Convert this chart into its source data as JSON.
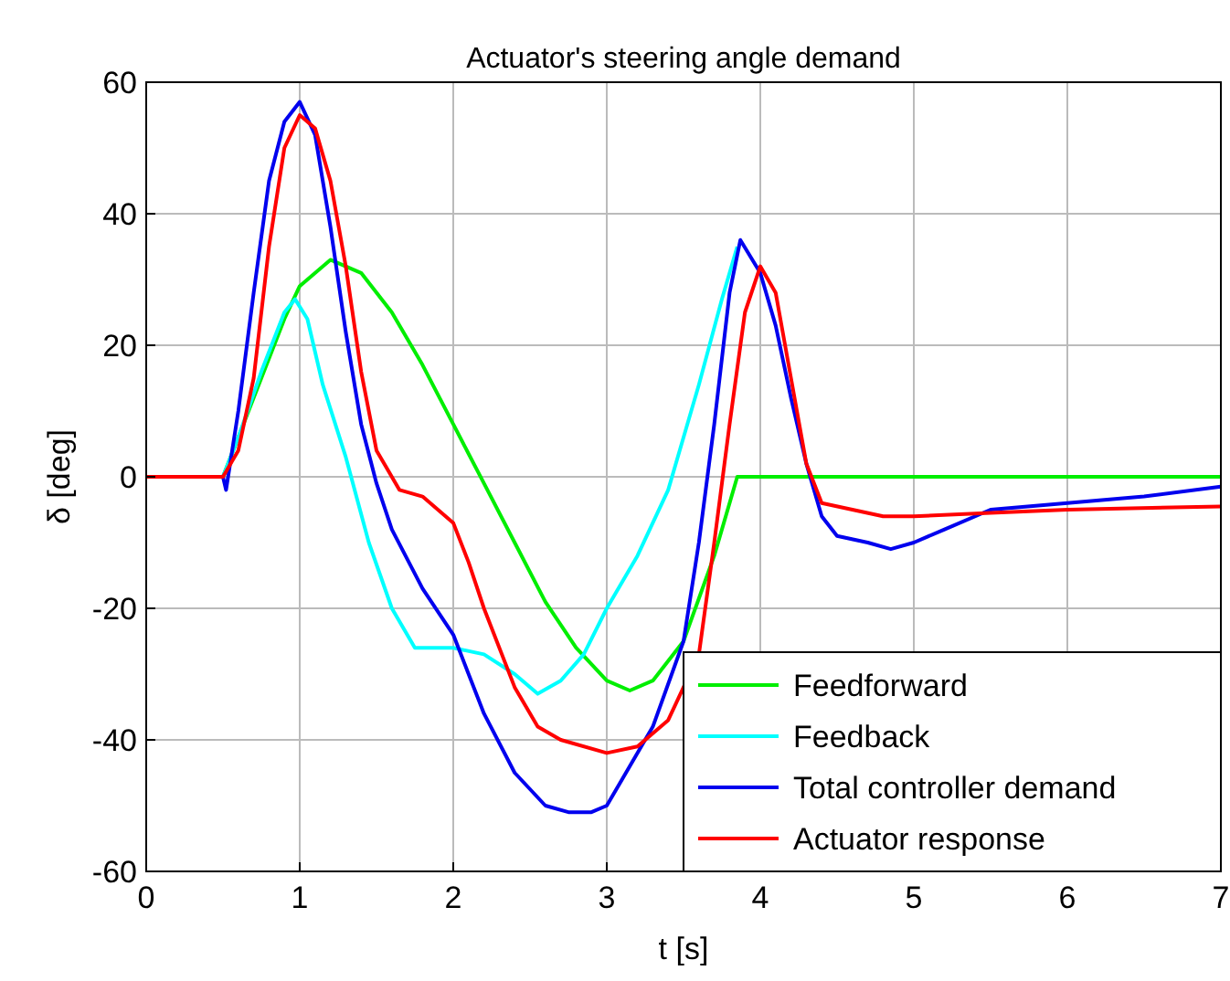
{
  "chart_data": {
    "type": "line",
    "title": "Actuator's steering angle demand",
    "xlabel": "t  [s]",
    "ylabel": "δ  [deg]",
    "xlim": [
      0,
      7
    ],
    "xticks": [
      0,
      1,
      2,
      3,
      4,
      5,
      6,
      7
    ],
    "ylim": [
      -60,
      60
    ],
    "yticks": [
      -60,
      -40,
      -20,
      0,
      20,
      40,
      60
    ],
    "grid": true,
    "legend": "bottom right",
    "line_style": "solid",
    "marker": "none",
    "series": [
      {
        "name": "Feedforward",
        "color": "#00ee00",
        "x": [
          0,
          0.5,
          0.7,
          0.9,
          1.0,
          1.2,
          1.4,
          1.6,
          1.8,
          2.0,
          2.2,
          2.4,
          2.6,
          2.8,
          3.0,
          3.15,
          3.3,
          3.5,
          3.7,
          3.85,
          7
        ],
        "values": [
          0,
          0,
          12,
          24,
          29,
          33,
          31,
          25,
          17,
          8,
          -1,
          -10,
          -19,
          -26,
          -31,
          -32.5,
          -31,
          -25,
          -12,
          0,
          0
        ]
      },
      {
        "name": "Feedback",
        "color": "#00ffff",
        "x": [
          0,
          0.5,
          0.6,
          0.75,
          0.9,
          0.97,
          1.05,
          1.15,
          1.3,
          1.45,
          1.6,
          1.75,
          2.0,
          2.2,
          2.4,
          2.55,
          2.7,
          2.85,
          3.0,
          3.2,
          3.4,
          3.6,
          3.75,
          3.85
        ],
        "values": [
          0,
          0,
          6,
          16,
          25,
          27,
          24,
          14,
          3,
          -10,
          -20,
          -26,
          -26,
          -27,
          -30,
          -33,
          -31,
          -27,
          -20,
          -12,
          -2,
          14,
          27,
          35
        ]
      },
      {
        "name": "Total controller demand",
        "color": "#0000ee",
        "x": [
          0,
          0.5,
          0.52,
          0.6,
          0.7,
          0.8,
          0.9,
          1.0,
          1.1,
          1.2,
          1.3,
          1.4,
          1.5,
          1.6,
          1.8,
          2.0,
          2.2,
          2.4,
          2.6,
          2.75,
          2.9,
          3.0,
          3.1,
          3.3,
          3.5,
          3.6,
          3.7,
          3.8,
          3.87,
          4.0,
          4.1,
          4.2,
          4.3,
          4.4,
          4.5,
          4.7,
          4.85,
          5.0,
          5.2,
          5.5,
          6.0,
          6.5,
          7.0
        ],
        "values": [
          0,
          0,
          -2,
          10,
          28,
          45,
          54,
          57,
          52,
          38,
          22,
          8,
          -1,
          -8,
          -17,
          -24,
          -36,
          -45,
          -50,
          -51,
          -51,
          -50,
          -46,
          -38,
          -25,
          -10,
          8,
          28,
          36,
          31,
          23,
          12,
          2,
          -6,
          -9,
          -10,
          -11,
          -10,
          -8,
          -5,
          -4,
          -3,
          -1.5
        ]
      },
      {
        "name": "Actuator response",
        "color": "#ff0000",
        "x": [
          0,
          0.5,
          0.6,
          0.7,
          0.8,
          0.9,
          1.0,
          1.1,
          1.2,
          1.3,
          1.4,
          1.5,
          1.65,
          1.8,
          2.0,
          2.1,
          2.2,
          2.4,
          2.55,
          2.7,
          3.0,
          3.2,
          3.4,
          3.6,
          3.7,
          3.8,
          3.9,
          4.0,
          4.1,
          4.2,
          4.3,
          4.4,
          4.6,
          4.8,
          5.0,
          5.5,
          6.0,
          7.0
        ],
        "values": [
          0,
          0,
          4,
          15,
          35,
          50,
          55,
          53,
          45,
          32,
          16,
          4,
          -2,
          -3,
          -7,
          -13,
          -20,
          -32,
          -38,
          -40,
          -42,
          -41,
          -37,
          -27,
          -10,
          8,
          25,
          32,
          28,
          15,
          2,
          -4,
          -5,
          -6,
          -6,
          -5.5,
          -5,
          -4.5
        ]
      }
    ]
  }
}
